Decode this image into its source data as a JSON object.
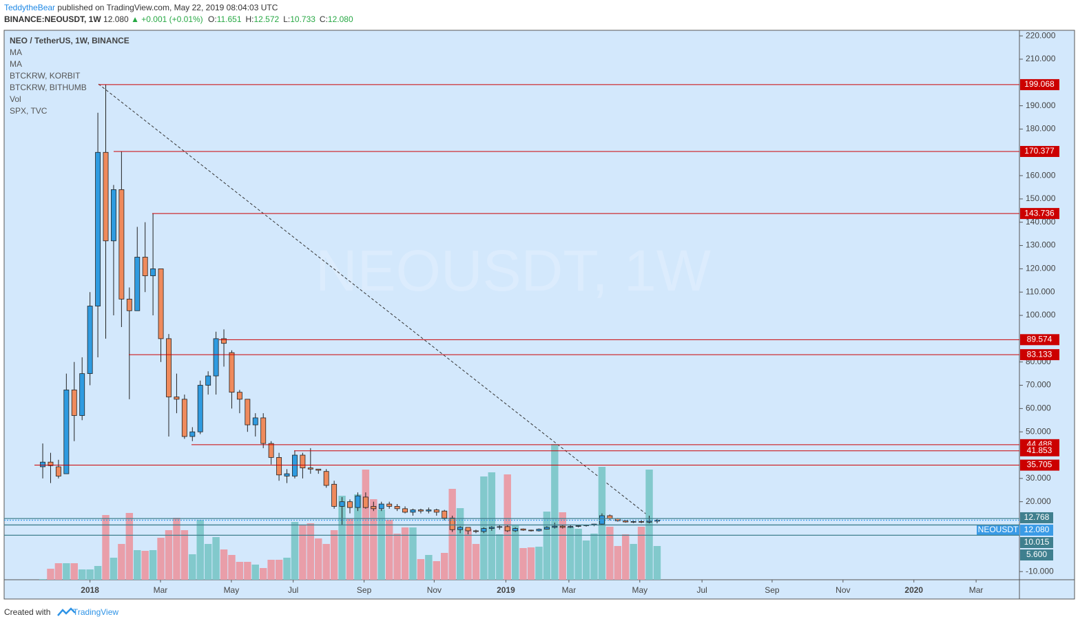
{
  "header": {
    "author": "TeddytheBear",
    "published": "published on TradingView.com, May 22, 2019 08:04:03 UTC",
    "symbol": "BINANCE:NEOUSDT, 1W",
    "last": "12.080",
    "change": "▲ +0.001 (+0.01%)",
    "ohlc": [
      {
        "key": "O:",
        "value": "11.651"
      },
      {
        "key": "H:",
        "value": "12.572"
      },
      {
        "key": "L:",
        "value": "10.733"
      },
      {
        "key": "C:",
        "value": "12.080"
      }
    ]
  },
  "chart_data": {
    "type": "candlestick",
    "title": "NEO / TetherUS, 1W, BINANCE",
    "indicators": [
      "MA",
      "MA",
      "BTCKRW, KORBIT",
      "BTCKRW, BITHUMB",
      "Vol",
      "SPX, TVC"
    ],
    "watermark": "NEOUSDT, 1W",
    "open": [
      35,
      37,
      35,
      32,
      68,
      57,
      75,
      104,
      170,
      132,
      154,
      107,
      102,
      125,
      117,
      120,
      90,
      65,
      64,
      48,
      50,
      70,
      74,
      90,
      84,
      67,
      64,
      53,
      56,
      45,
      39,
      31,
      31,
      40,
      34.5,
      34,
      33,
      27.5,
      18,
      20,
      17.5,
      22,
      18,
      17,
      19,
      18,
      17,
      15.5,
      16.5,
      16,
      16.5,
      16,
      13,
      8,
      9,
      7.5,
      7.2,
      8.5,
      9,
      9.3,
      7.5,
      8.3,
      7.8,
      7.5,
      8.2,
      9,
      9.5,
      9,
      9.4,
      9.7,
      10,
      10.4,
      14,
      12.8,
      11.8,
      11.3,
      11.5,
      11.2,
      11.651
    ],
    "high": [
      45,
      41,
      38,
      75,
      80,
      82,
      110,
      187,
      199.068,
      156,
      170.377,
      112,
      138,
      140,
      143.736,
      120,
      92,
      75,
      66,
      52,
      72,
      76,
      93,
      94,
      85,
      68,
      64,
      58,
      58,
      46,
      41,
      34,
      42,
      41,
      43,
      34,
      34,
      29,
      22,
      21,
      24,
      24,
      20,
      20,
      20,
      19,
      18,
      17,
      17,
      17.5,
      17,
      16.5,
      14,
      9.5,
      9,
      8,
      9,
      9.5,
      10,
      10,
      9,
      8.5,
      8,
      8.5,
      9.5,
      11,
      10,
      10,
      10,
      10.2,
      10.5,
      15,
      14.5,
      13,
      12,
      11.8,
      12,
      14,
      12.572
    ],
    "low": [
      30,
      28,
      30,
      32,
      46,
      55,
      70,
      82,
      90,
      100,
      95,
      64,
      102,
      110,
      100,
      80,
      48,
      58,
      47,
      46,
      49,
      66,
      66,
      78,
      60,
      58,
      50,
      48,
      43,
      36,
      29,
      28,
      30,
      30,
      32,
      32,
      26,
      17,
      10,
      15,
      16,
      17,
      16,
      16,
      17,
      16,
      15,
      14,
      15,
      15,
      14,
      12,
      7,
      6.5,
      6,
      6.5,
      6.5,
      7.5,
      8,
      7,
      7,
      7.5,
      7.2,
      7.2,
      8,
      8.5,
      8.5,
      8.7,
      9,
      9.3,
      9.5,
      10,
      12,
      11.5,
      11,
      10.8,
      10.8,
      10.7,
      10.733
    ],
    "close": [
      37,
      35.5,
      31,
      68,
      57,
      75,
      104,
      170,
      132,
      154,
      107,
      102,
      125,
      117,
      120,
      90,
      65,
      64,
      48,
      50,
      70,
      74,
      90,
      88,
      67,
      64,
      53,
      56,
      45,
      39,
      31.5,
      32,
      40,
      34.5,
      34,
      33.5,
      27,
      18,
      20,
      17.5,
      22.5,
      17.5,
      17,
      19,
      18,
      17,
      15.5,
      16.5,
      16,
      16.5,
      15.5,
      13,
      8,
      9,
      7.5,
      7.2,
      8.5,
      9,
      9.3,
      7.5,
      8.5,
      7.8,
      7.5,
      8.2,
      9,
      9.5,
      9,
      9.4,
      9.7,
      10,
      10.4,
      14,
      12.8,
      11.8,
      11.3,
      11.5,
      11.2,
      11.65,
      12.08
    ],
    "volume": [
      1,
      16,
      24,
      24,
      24,
      15,
      15,
      20,
      94,
      32,
      52,
      97,
      43,
      42,
      43,
      61,
      72,
      90,
      72,
      37,
      87,
      52,
      62,
      44,
      36,
      26,
      26,
      22,
      17,
      29,
      29,
      32,
      84,
      80,
      82,
      60,
      52,
      72,
      122,
      89,
      124,
      160,
      117,
      102,
      87,
      67,
      76,
      76,
      30,
      36,
      27,
      39,
      132,
      104,
      74,
      52,
      150,
      156,
      66,
      153,
      79,
      46,
      47,
      48,
      99,
      197,
      98,
      77,
      74,
      57,
      67,
      164,
      77,
      49,
      66,
      52,
      77,
      160,
      49
    ],
    "volume_ylim": [
      0,
      798
    ],
    "up_color": "#2f9be0",
    "down_color": "#ef8a5c",
    "volume_up_color": "#82c9cc",
    "volume_down_color": "#e99ea9",
    "xlim": [
      -4.9,
      124
    ],
    "xticks": [
      {
        "value": 6,
        "label": "2018"
      },
      {
        "value": 14.95,
        "label": "Mar"
      },
      {
        "value": 23.95,
        "label": "May"
      },
      {
        "value": 31.8,
        "label": "Jul"
      },
      {
        "value": 40.8,
        "label": "Sep"
      },
      {
        "value": 49.7,
        "label": "Nov"
      },
      {
        "value": 58.8,
        "label": "2019"
      },
      {
        "value": 66.8,
        "label": "Mar"
      },
      {
        "value": 75.8,
        "label": "May"
      },
      {
        "value": 83.7,
        "label": "Jul"
      },
      {
        "value": 92.6,
        "label": "Sep"
      },
      {
        "value": 101.6,
        "label": "Nov"
      },
      {
        "value": 110.6,
        "label": "2020"
      },
      {
        "value": 118.5,
        "label": "Mar"
      }
    ],
    "ylim": [
      -13.5,
      222.4
    ],
    "yticks": [
      {
        "value": 220,
        "label": "220.000"
      },
      {
        "value": 210,
        "label": "210.000"
      },
      {
        "value": 190,
        "label": "190.000"
      },
      {
        "value": 180,
        "label": "180.000"
      },
      {
        "value": 160,
        "label": "160.000"
      },
      {
        "value": 150,
        "label": "150.000"
      },
      {
        "value": 140,
        "label": "140.000"
      },
      {
        "value": 130,
        "label": "130.000"
      },
      {
        "value": 120,
        "label": "120.000"
      },
      {
        "value": 110,
        "label": "110.000"
      },
      {
        "value": 100,
        "label": "100.000"
      },
      {
        "value": 80,
        "label": "80.000"
      },
      {
        "value": 70,
        "label": "70.000"
      },
      {
        "value": 60,
        "label": "60.000"
      },
      {
        "value": 50,
        "label": "50.000"
      },
      {
        "value": 30,
        "label": "30.000"
      },
      {
        "value": 20,
        "label": "20.000"
      },
      {
        "value": -10,
        "label": "-10.000"
      }
    ],
    "levels": [
      199.068,
      170.377,
      143.736,
      89.574,
      83.133,
      44.488,
      41.853,
      35.705
    ],
    "level_color": "#cc0000",
    "price_lines": [
      {
        "value": 12.768,
        "color": "#3f7f8e"
      },
      {
        "value": 12.08,
        "label": "12.080",
        "name": "NEOUSDT",
        "color": "#3a9be6"
      },
      {
        "value": 10.015,
        "color": "#3f7f8e"
      },
      {
        "value": 5.6,
        "label": "5.600",
        "color": "#3f7f8e"
      }
    ]
  },
  "footer": {
    "created": "Created with",
    "brand": "TradingView"
  }
}
